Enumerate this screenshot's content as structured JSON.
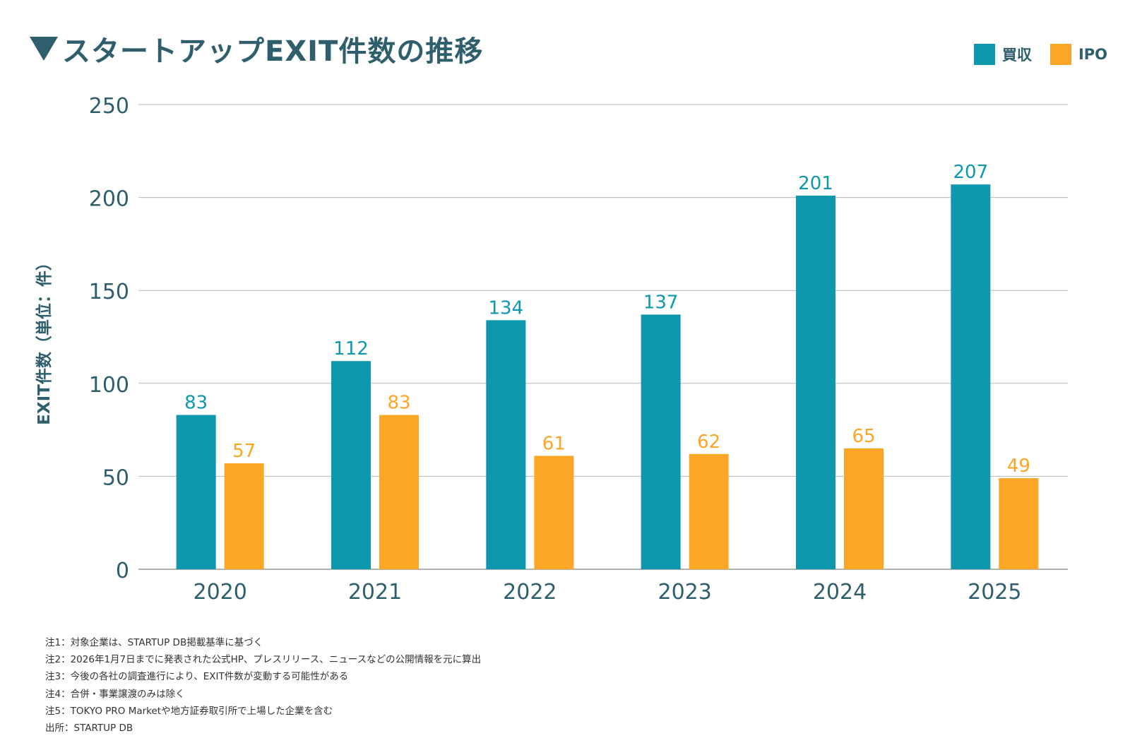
{
  "title": "スタートアップEXIT件数の推移",
  "colors": {
    "acquisition": "#0e98ad",
    "ipo": "#fba624",
    "title": "#2f5e6c",
    "grid": "#b8b8b8",
    "axis_text": "#2f5e6c"
  },
  "legend": {
    "acquisition_label": "買収",
    "ipo_label": "IPO"
  },
  "chart_data": {
    "type": "bar",
    "title": "スタートアップEXIT件数の推移",
    "xlabel": "",
    "ylabel": "EXIT件数（単位：件）",
    "ylim": [
      0,
      250
    ],
    "yticks": [
      0,
      50,
      100,
      150,
      200,
      250
    ],
    "grid": true,
    "legend_position": "top-right",
    "categories": [
      "2020",
      "2021",
      "2022",
      "2023",
      "2024",
      "2025"
    ],
    "series": [
      {
        "name": "買収",
        "values": [
          83,
          112,
          134,
          137,
          201,
          207
        ]
      },
      {
        "name": "IPO",
        "values": [
          57,
          83,
          61,
          62,
          65,
          49
        ]
      }
    ]
  },
  "notes": [
    "注1：対象企業は、STARTUP DB掲載基準に基づく",
    "注2：2026年1月7日までに発表された公式HP、プレスリリース、ニュースなどの公開情報を元に算出",
    "注3：今後の各社の調査進行により、EXIT件数が変動する可能性がある",
    "注4：合併・事業譲渡のみは除く",
    "注5：TOKYO PRO Marketや地方証券取引所で上場した企業を含む",
    "出所：STARTUP DB"
  ]
}
